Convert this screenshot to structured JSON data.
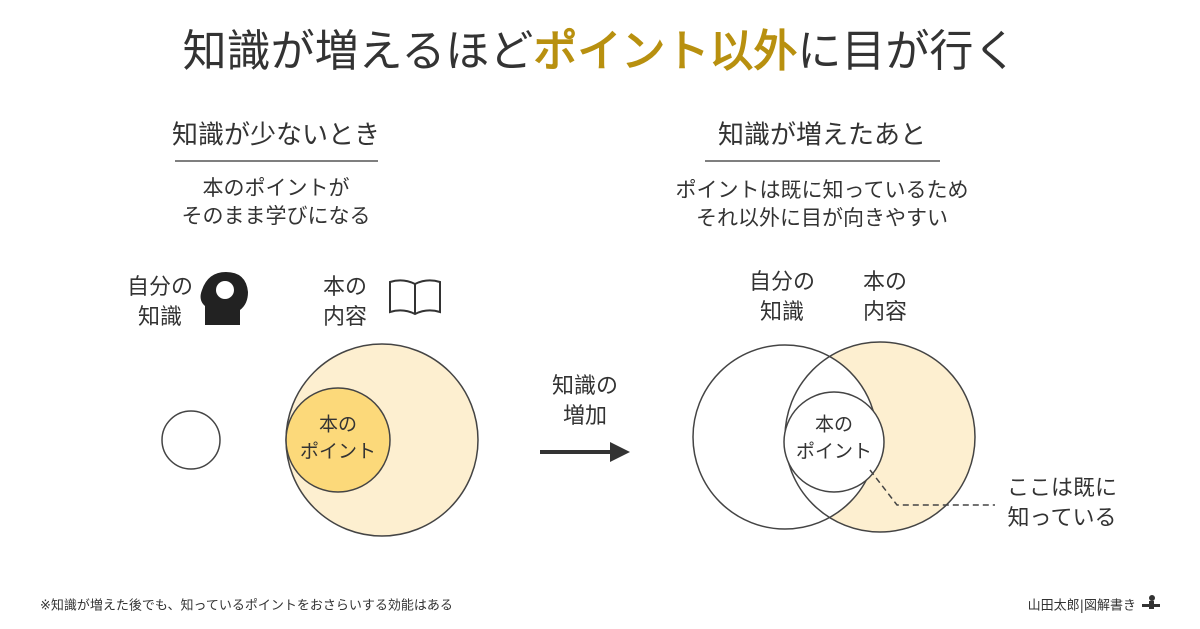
{
  "title": {
    "before": "知識が増えるほど",
    "highlight": "ポイント以外",
    "after": "に目が行く"
  },
  "left": {
    "heading": "知識が少ないとき",
    "description": [
      "本のポイントが",
      "そのまま学びになる"
    ],
    "self_label": [
      "自分の",
      "知識"
    ],
    "book_label": [
      "本の",
      "内容"
    ],
    "point_label": [
      "本の",
      "ポイント"
    ]
  },
  "arrow": {
    "label": [
      "知識の",
      "増加"
    ]
  },
  "right": {
    "heading": "知識が増えたあと",
    "description": [
      "ポイントは既に知っているため",
      "それ以外に目が向きやすい"
    ],
    "self_label": [
      "自分の",
      "知識"
    ],
    "book_label": [
      "本の",
      "内容"
    ],
    "point_label": [
      "本の",
      "ポイント"
    ],
    "callout": [
      "ここは既に",
      "知っている"
    ]
  },
  "footnote": "※知識が増えた後でも、知っているポイントをおさらいする効能はある",
  "credit": "山田太郎|図解書き"
}
